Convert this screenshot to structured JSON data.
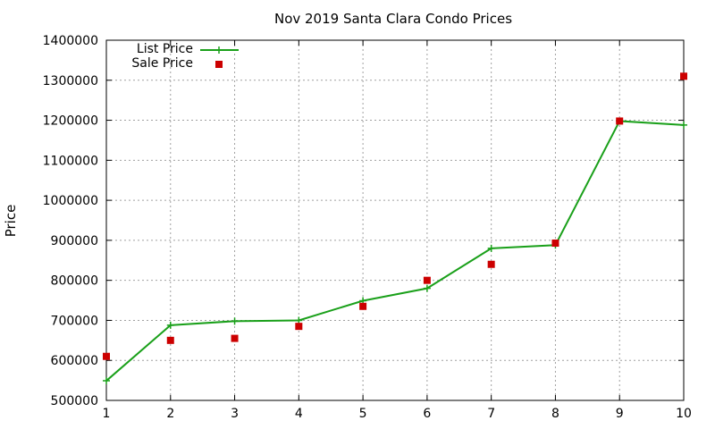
{
  "chart_data": {
    "type": "line",
    "title": "Nov 2019 Santa Clara Condo Prices",
    "xlabel": "",
    "ylabel": "Price",
    "xlim": [
      1,
      10
    ],
    "ylim": [
      500000,
      1400000
    ],
    "xticks": [
      1,
      2,
      3,
      4,
      5,
      6,
      7,
      8,
      9,
      10
    ],
    "yticks": [
      500000,
      600000,
      700000,
      800000,
      900000,
      1000000,
      1100000,
      1200000,
      1300000,
      1400000
    ],
    "grid": true,
    "legend_position": "top-left",
    "series": [
      {
        "name": "List Price",
        "style": "line+cross",
        "color": "#1aa01a",
        "x": [
          1,
          2,
          3,
          4,
          5,
          6,
          7,
          8,
          9,
          10
        ],
        "y": [
          549000,
          688000,
          698000,
          700000,
          749000,
          780000,
          880000,
          888000,
          1198000,
          1188000
        ]
      },
      {
        "name": "Sale Price",
        "style": "square-points",
        "color": "#cc0000",
        "x": [
          1,
          2,
          3,
          4,
          5,
          6,
          7,
          8,
          9,
          10
        ],
        "y": [
          610000,
          650000,
          655000,
          685000,
          735000,
          800000,
          840000,
          893000,
          1198000,
          1310000
        ]
      }
    ]
  }
}
